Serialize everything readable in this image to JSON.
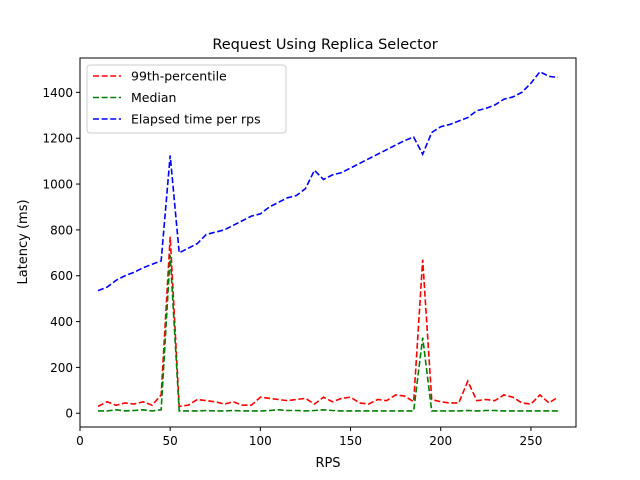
{
  "chart_data": {
    "type": "line",
    "title": "Request Using Replica Selector",
    "xlabel": "RPS",
    "ylabel": "Latency (ms)",
    "xlim": [
      0,
      275
    ],
    "ylim": [
      -60,
      1550
    ],
    "xticks": [
      0,
      50,
      100,
      150,
      200,
      250
    ],
    "yticks": [
      0,
      200,
      400,
      600,
      800,
      1000,
      1200,
      1400
    ],
    "grid": false,
    "legend_position": "upper-left",
    "x": [
      10,
      15,
      20,
      25,
      30,
      35,
      40,
      45,
      50,
      55,
      60,
      65,
      70,
      75,
      80,
      85,
      90,
      95,
      100,
      105,
      110,
      115,
      120,
      125,
      130,
      135,
      140,
      145,
      150,
      155,
      160,
      165,
      170,
      175,
      180,
      185,
      190,
      195,
      200,
      205,
      210,
      215,
      220,
      225,
      230,
      235,
      240,
      245,
      250,
      255,
      260,
      265
    ],
    "series": [
      {
        "name": "99th-percentile",
        "color": "#ff0000",
        "values": [
          30,
          50,
          35,
          45,
          40,
          50,
          35,
          80,
          770,
          30,
          35,
          60,
          55,
          50,
          40,
          50,
          35,
          35,
          70,
          65,
          60,
          55,
          60,
          65,
          40,
          70,
          50,
          65,
          70,
          45,
          40,
          60,
          55,
          80,
          75,
          50,
          670,
          60,
          50,
          45,
          45,
          140,
          55,
          60,
          55,
          80,
          70,
          45,
          40,
          80,
          45,
          70
        ]
      },
      {
        "name": "Median",
        "color": "#008000",
        "values": [
          10,
          10,
          15,
          10,
          12,
          15,
          10,
          15,
          690,
          10,
          10,
          10,
          12,
          10,
          10,
          12,
          10,
          10,
          10,
          12,
          15,
          12,
          12,
          10,
          12,
          15,
          12,
          10,
          10,
          10,
          10,
          10,
          10,
          10,
          10,
          10,
          330,
          10,
          10,
          10,
          10,
          12,
          10,
          12,
          12,
          10,
          10,
          10,
          10,
          10,
          10,
          10
        ]
      },
      {
        "name": "Elapsed time per rps",
        "color": "#0000ff",
        "values": [
          535,
          550,
          580,
          600,
          615,
          635,
          650,
          665,
          1125,
          700,
          720,
          740,
          780,
          790,
          800,
          820,
          840,
          860,
          870,
          900,
          920,
          940,
          950,
          980,
          1060,
          1020,
          1040,
          1050,
          1070,
          1090,
          1110,
          1130,
          1150,
          1170,
          1190,
          1205,
          1130,
          1225,
          1250,
          1260,
          1275,
          1290,
          1320,
          1330,
          1345,
          1370,
          1380,
          1400,
          1440,
          1490,
          1470,
          1465
        ]
      }
    ]
  }
}
